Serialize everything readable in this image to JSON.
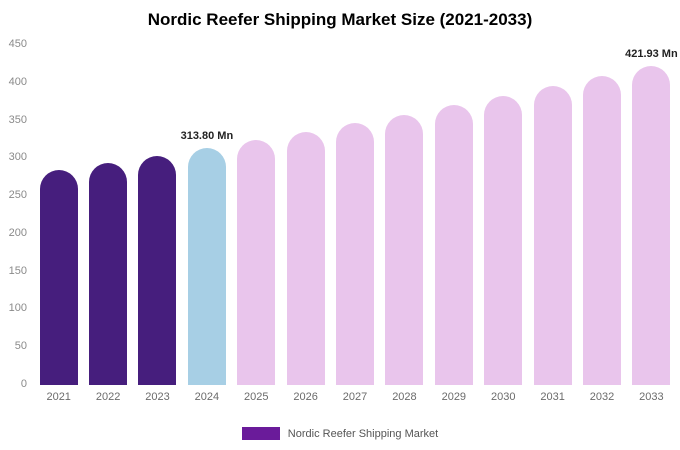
{
  "chart_data": {
    "type": "bar",
    "title": "Nordic Reefer Shipping Market Size (2021-2033)",
    "categories": [
      "2021",
      "2022",
      "2023",
      "2024",
      "2025",
      "2026",
      "2027",
      "2028",
      "2029",
      "2030",
      "2031",
      "2032",
      "2033"
    ],
    "values": [
      284.0,
      293.7,
      303.6,
      313.8,
      324.3,
      335.2,
      346.4,
      358.0,
      370.0,
      382.4,
      395.3,
      408.5,
      421.93
    ],
    "unit": "Mn",
    "xlabel": "",
    "ylabel": "",
    "ylim": [
      0,
      450
    ],
    "yticks": [
      0,
      50,
      100,
      150,
      200,
      250,
      300,
      350,
      400,
      450
    ],
    "grid": false,
    "bar_colors": [
      "#461e7d",
      "#461e7d",
      "#461e7d",
      "#a7cfe5",
      "#e9c5ec",
      "#e9c5ec",
      "#e9c5ec",
      "#e9c5ec",
      "#e9c5ec",
      "#e9c5ec",
      "#e9c5ec",
      "#e9c5ec",
      "#e9c5ec"
    ],
    "annotations": [
      {
        "category": "2024",
        "text": "313.80 Mn"
      },
      {
        "category": "2033",
        "text": "421.93 Mn"
      }
    ],
    "legend_position": "bottom",
    "legend": [
      {
        "label": "Nordic Reefer Shipping Market",
        "color": "#6a1b9a"
      }
    ]
  }
}
